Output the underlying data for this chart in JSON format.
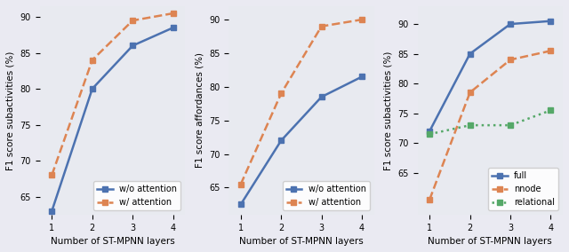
{
  "x": [
    1,
    2,
    3,
    4
  ],
  "plot1": {
    "ylabel": "F1 score subactivities (%)",
    "xlabel": "Number of ST-MPNN layers",
    "blue": [
      63.0,
      80.0,
      86.0,
      88.5
    ],
    "orange": [
      68.0,
      84.0,
      89.5,
      90.5
    ],
    "ylim": [
      62.5,
      91.5
    ],
    "yticks": [
      65,
      70,
      75,
      80,
      85,
      90
    ],
    "legend": [
      "w/o attention",
      "w/ attention"
    ]
  },
  "plot2": {
    "ylabel": "F1 score affordances (%)",
    "xlabel": "Number of ST-MPNN layers",
    "blue": [
      62.5,
      72.0,
      78.5,
      81.5
    ],
    "orange": [
      65.5,
      79.0,
      89.0,
      90.0
    ],
    "ylim": [
      61.0,
      92.0
    ],
    "yticks": [
      65,
      70,
      75,
      80,
      85,
      90
    ],
    "legend": [
      "w/o attention",
      "w/ attention"
    ]
  },
  "plot3": {
    "ylabel": "F1 score subactivities (%)",
    "xlabel": "Number of ST-MPNN layers",
    "blue": [
      72.0,
      85.0,
      90.0,
      90.5
    ],
    "orange": [
      60.5,
      78.5,
      84.0,
      85.5
    ],
    "green": [
      71.5,
      73.0,
      73.0,
      75.5
    ],
    "ylim": [
      58.0,
      93.0
    ],
    "yticks": [
      65,
      70,
      75,
      80,
      85,
      90
    ],
    "legend": [
      "full",
      "nnode",
      "relational"
    ]
  },
  "line_color_blue": "#4c72b0",
  "line_color_orange": "#dd8452",
  "line_color_green": "#55a868",
  "bg_color": "#e8eaf0",
  "fig_facecolor": "#eaeaf2",
  "marker": "s",
  "markersize": 4,
  "linewidth": 1.8
}
